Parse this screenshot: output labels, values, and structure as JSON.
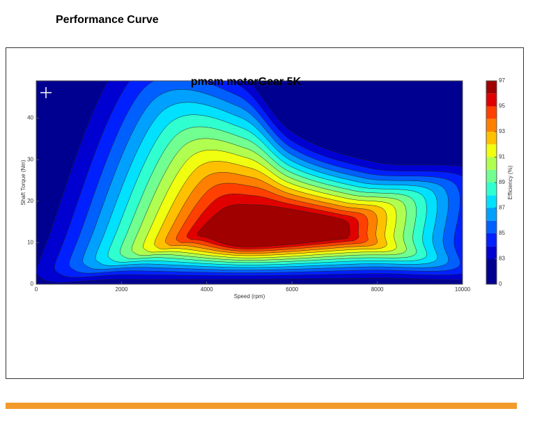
{
  "header": {
    "title": "Performance Curve"
  },
  "chart_data": {
    "type": "contour",
    "title": "pmsm motorGear 5K",
    "x_label": "Speed (rpm)",
    "y_label": "Shaft Torque (Nm)",
    "xlim": [
      0,
      10000
    ],
    "ylim": [
      0,
      49
    ],
    "xticks": [
      0,
      2000,
      4000,
      6000,
      8000,
      10000
    ],
    "yticks": [
      0,
      10,
      20,
      30,
      40
    ],
    "colorbar": {
      "label": "Efficiency (%)",
      "levels": [
        0,
        83,
        84,
        85,
        86,
        87,
        88,
        89,
        90,
        91,
        92,
        93,
        94,
        95,
        96
      ],
      "max": 97,
      "colors": [
        "#000090",
        "#0000d0",
        "#0020ff",
        "#0060ff",
        "#00a0ff",
        "#00e0ff",
        "#30ffd0",
        "#70ff90",
        "#b0ff50",
        "#f0ff10",
        "#ffc000",
        "#ff8000",
        "#ff4000",
        "#e00000",
        "#a00000"
      ],
      "ticks": [
        0,
        83,
        85,
        87,
        89,
        91,
        93,
        95,
        97
      ]
    }
  }
}
